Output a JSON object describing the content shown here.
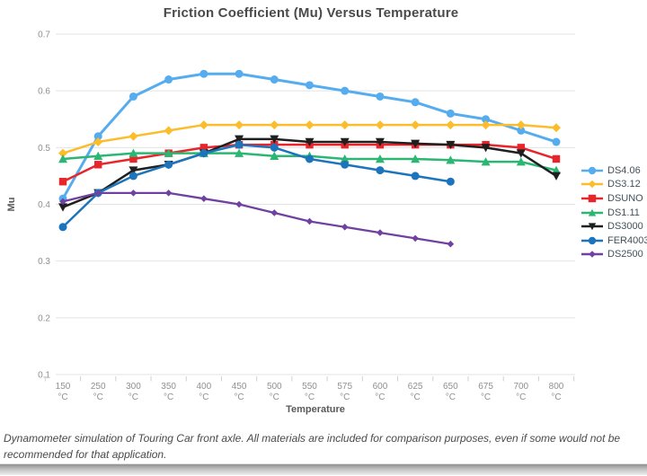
{
  "page": {
    "caption": "Dynamometer simulation of Touring Car front axle. All materials are included for comparison purposes, even if some would not be recommended for that application."
  },
  "chart_data": {
    "type": "line",
    "title": "Friction Coefficient (Mu) Versus Temperature",
    "xlabel": "Temperature",
    "ylabel": "Mu",
    "ylim": [
      0.1,
      0.7
    ],
    "yticks": [
      0.7,
      0.6,
      0.5,
      0.4,
      0.3,
      0.2,
      0.1
    ],
    "grid": true,
    "legend_position": "right",
    "categories": [
      "150 °C",
      "250 °C",
      "300 °C",
      "350 °C",
      "400 °C",
      "450 °C",
      "500 °C",
      "550 °C",
      "575 °C",
      "600 °C",
      "625 °C",
      "650 °C",
      "675 °C",
      "700 °C",
      "800 °C"
    ],
    "series": [
      {
        "name": "DS4.06",
        "color": "#55ACEE",
        "marker": "circle",
        "line_width": 3,
        "marker_size": 4.5,
        "values": [
          0.41,
          0.52,
          0.59,
          0.62,
          0.63,
          0.63,
          0.62,
          0.61,
          0.6,
          0.59,
          0.58,
          0.56,
          0.55,
          0.53,
          0.51
        ]
      },
      {
        "name": "DS3.12",
        "color": "#FBBD2B",
        "marker": "diamond",
        "line_width": 2.5,
        "marker_size": 5,
        "values": [
          0.49,
          0.51,
          0.52,
          0.53,
          0.54,
          0.54,
          0.54,
          0.54,
          0.54,
          0.54,
          0.54,
          0.54,
          0.54,
          0.54,
          0.535
        ]
      },
      {
        "name": "DSUNO",
        "color": "#E8252A",
        "marker": "square",
        "line_width": 2.5,
        "marker_size": 4.2,
        "values": [
          0.44,
          0.47,
          0.48,
          0.49,
          0.5,
          0.505,
          0.505,
          0.505,
          0.505,
          0.505,
          0.505,
          0.505,
          0.505,
          0.5,
          0.48
        ]
      },
      {
        "name": "DS1.11",
        "color": "#2BB673",
        "marker": "triangle-up",
        "line_width": 2.5,
        "marker_size": 5,
        "values": [
          0.48,
          0.485,
          0.49,
          0.49,
          0.49,
          0.49,
          0.485,
          0.485,
          0.48,
          0.48,
          0.48,
          0.478,
          0.475,
          0.475,
          0.46
        ]
      },
      {
        "name": "DS3000",
        "color": "#1F1F1F",
        "marker": "triangle-down",
        "line_width": 2.5,
        "marker_size": 5,
        "values": [
          0.395,
          0.42,
          0.46,
          0.47,
          0.49,
          0.515,
          0.515,
          0.51,
          0.51,
          0.51,
          0.507,
          0.505,
          0.5,
          0.49,
          0.45
        ]
      },
      {
        "name": "FER4003",
        "color": "#1C75BC",
        "marker": "circle",
        "line_width": 2.5,
        "marker_size": 4.5,
        "values": [
          0.36,
          0.42,
          0.45,
          0.47,
          0.49,
          0.505,
          0.5,
          0.48,
          0.47,
          0.46,
          0.45,
          0.44,
          null,
          null,
          null
        ]
      },
      {
        "name": "DS2500",
        "color": "#7141A1",
        "marker": "diamond",
        "line_width": 2.3,
        "marker_size": 3.8,
        "values": [
          0.405,
          0.42,
          0.42,
          0.42,
          0.41,
          0.4,
          0.385,
          0.37,
          0.36,
          0.35,
          0.34,
          0.33,
          null,
          null,
          null
        ]
      }
    ]
  }
}
